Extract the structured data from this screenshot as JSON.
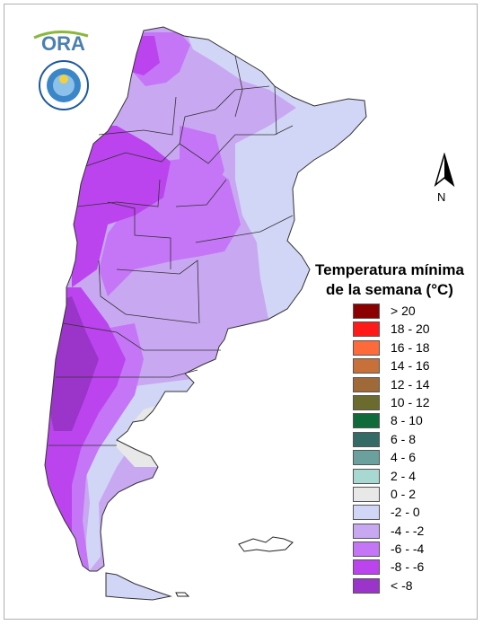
{
  "title": {
    "line1": "Temperatura mínima",
    "line2": "de la semana (°C)"
  },
  "logos": {
    "ora": "ORA",
    "seal_text": "SERVICIO METEOROLÓGICO NACIONAL ARGENTINA"
  },
  "north_label": "N",
  "legend": [
    {
      "label": "> 20",
      "color": "#8b0000"
    },
    {
      "label": "18 - 20",
      "color": "#ff1a1a"
    },
    {
      "label": "16 - 18",
      "color": "#ff6a3a"
    },
    {
      "label": "14 - 16",
      "color": "#c8703a"
    },
    {
      "label": "12 - 14",
      "color": "#a06a38"
    },
    {
      "label": "10 - 12",
      "color": "#6b6b2e"
    },
    {
      "label": "8 - 10",
      "color": "#0f6b3a"
    },
    {
      "label": "6 - 8",
      "color": "#356b66"
    },
    {
      "label": "4 - 6",
      "color": "#6aa09e"
    },
    {
      "label": "2 - 4",
      "color": "#a8d8d2"
    },
    {
      "label": "0 - 2",
      "color": "#e8e8e8"
    },
    {
      "label": "-2 - 0",
      "color": "#d2d6f6"
    },
    {
      "label": "-4 - -2",
      "color": "#c9a8f2"
    },
    {
      "label": "-6 - -4",
      "color": "#c576f6"
    },
    {
      "label": "-8 - -6",
      "color": "#bb44ee"
    },
    {
      "label": "< -8",
      "color": "#9b35c9"
    }
  ]
}
